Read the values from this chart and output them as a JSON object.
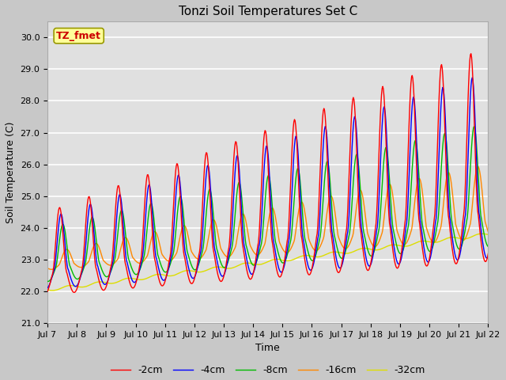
{
  "title": "Tonzi Soil Temperatures Set C",
  "xlabel": "Time",
  "ylabel": "Soil Temperature (C)",
  "ylim": [
    21.0,
    30.5
  ],
  "yticks": [
    21.0,
    22.0,
    23.0,
    24.0,
    25.0,
    26.0,
    27.0,
    28.0,
    29.0,
    30.0
  ],
  "series_labels": [
    "-2cm",
    "-4cm",
    "-8cm",
    "-16cm",
    "-32cm"
  ],
  "series_colors": [
    "#ff0000",
    "#0000ff",
    "#00bb00",
    "#ff8800",
    "#dddd00"
  ],
  "xtick_labels": [
    "Jul 7",
    "Jul 8",
    "Jul 9",
    "Jul 10",
    "Jul 11",
    "Jul 12",
    "Jul 13",
    "Jul 14",
    "Jul 15",
    "Jul 16",
    "Jul 17",
    "Jul 18",
    "Jul 19",
    "Jul 20",
    "Jul 21",
    "Jul 22"
  ],
  "annotation_text": "TZ_fmet",
  "annotation_bg": "#ffff99",
  "annotation_border": "#999900",
  "annotation_text_color": "#cc0000",
  "fig_bg": "#c8c8c8",
  "plot_bg": "#e0e0e0",
  "grid_color": "#ffffff",
  "title_fontsize": 11,
  "label_fontsize": 9,
  "tick_fontsize": 8,
  "legend_fontsize": 9,
  "line_width": 1.0
}
